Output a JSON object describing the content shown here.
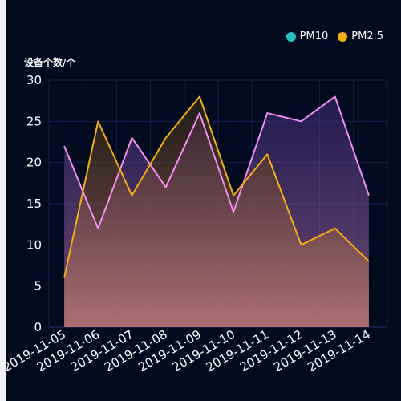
{
  "chart_data": {
    "type": "area",
    "ylabel": "设备个数/个",
    "ylim": [
      0,
      30
    ],
    "yticks": [
      0,
      5,
      10,
      15,
      20,
      25,
      30
    ],
    "categories": [
      "2019-11-05",
      "2019-11-06",
      "2019-11-07",
      "2019-11-08",
      "2019-11-09",
      "2019-11-10",
      "2019-11-11",
      "2019-11-12",
      "2019-11-13",
      "2019-11-14"
    ],
    "series": [
      {
        "name": "PM10",
        "legend_color": "#21c7c5",
        "line_color": "#f48ef0",
        "values": [
          22,
          12,
          23,
          17,
          26,
          14,
          26,
          25,
          28,
          16
        ]
      },
      {
        "name": "PM2.5",
        "legend_color": "#f5b10a",
        "line_color": "#f5b10a",
        "values": [
          6,
          25,
          16,
          23,
          28,
          16,
          21,
          10,
          12,
          8
        ]
      }
    ],
    "grid": true,
    "legend_position": "top-right",
    "colors": {
      "background": "#020a1f",
      "grid": "#1a1d52",
      "axis": "#2b2f6b"
    }
  }
}
